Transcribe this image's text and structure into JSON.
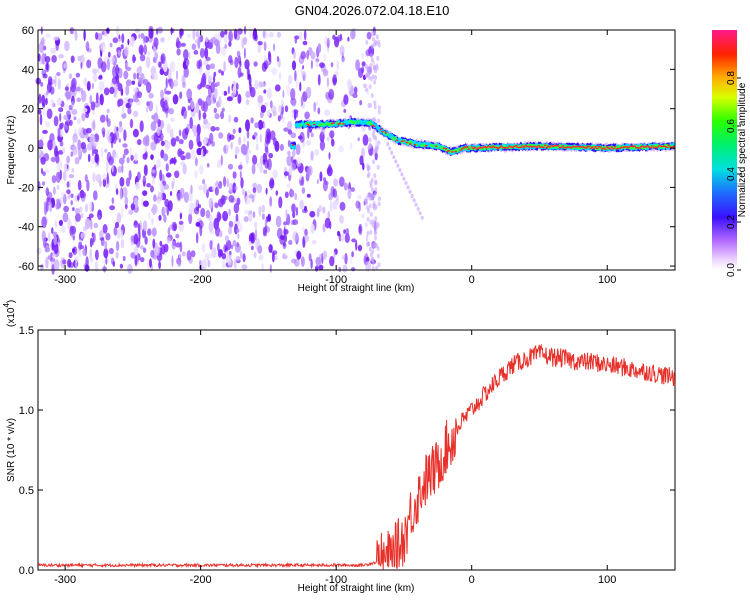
{
  "title": "GN04.2026.072.04.18.E10",
  "colors": {
    "series": "#e8302a",
    "axis": "#000000",
    "scatter": "#7a22ff"
  },
  "chart_data": [
    {
      "type": "heatmap",
      "xlabel": "Height of straight line (km)",
      "ylabel": "Frequency (Hz)",
      "xlim": [
        -320,
        150
      ],
      "ylim": [
        -62,
        60
      ],
      "xticks": [
        -300,
        -200,
        -100,
        0,
        100
      ],
      "xtick_labels": [
        "-300",
        "-200",
        "-100",
        "0",
        "100"
      ],
      "yticks": [
        60,
        40,
        20,
        0,
        -20,
        -40,
        -60
      ],
      "ytick_labels": [
        "60",
        "40",
        "20",
        "0",
        "-20",
        "-40",
        "-60"
      ],
      "noise_region_x": [
        -320,
        -70
      ],
      "ridge": [
        [
          -130,
          12
        ],
        [
          -110,
          12
        ],
        [
          -90,
          13
        ],
        [
          -75,
          13
        ],
        [
          -65,
          8
        ],
        [
          -55,
          4
        ],
        [
          -40,
          2
        ],
        [
          -25,
          1
        ],
        [
          -15,
          -2
        ],
        [
          -5,
          0
        ],
        [
          0,
          0
        ],
        [
          50,
          1
        ],
        [
          100,
          0
        ],
        [
          150,
          1
        ]
      ],
      "colorbar": {
        "label": "Normalized spectral amplitude",
        "range": [
          0,
          1
        ],
        "ticks": [
          0.0,
          0.2,
          0.4,
          0.6,
          0.8
        ],
        "tick_labels": [
          "0.0",
          "0.2",
          "0.4",
          "0.6",
          "0.8"
        ]
      }
    },
    {
      "type": "line",
      "xlabel": "Height of straight line (km)",
      "ylabel": "SNR (10 * v/v)",
      "scale_label": "(x10",
      "scale_exp": "4",
      "scale_close": ")",
      "xlim": [
        -320,
        150
      ],
      "ylim": [
        0,
        1.5
      ],
      "xticks": [
        -300,
        -200,
        -100,
        0,
        100
      ],
      "xtick_labels": [
        "-300",
        "-200",
        "-100",
        "0",
        "100"
      ],
      "yticks": [
        0.0,
        0.5,
        1.0,
        1.5
      ],
      "ytick_labels": [
        "0.0",
        "0.5",
        "1.0",
        "1.5"
      ],
      "series": [
        {
          "name": "SNR",
          "x": [
            -320,
            -250,
            -200,
            -150,
            -100,
            -80,
            -70,
            -60,
            -50,
            -45,
            -40,
            -35,
            -30,
            -25,
            -20,
            -15,
            -10,
            -5,
            0,
            10,
            20,
            30,
            40,
            50,
            60,
            70,
            80,
            90,
            100,
            110,
            120,
            130,
            140,
            150
          ],
          "y": [
            0.03,
            0.03,
            0.03,
            0.03,
            0.03,
            0.03,
            0.05,
            0.08,
            0.2,
            0.35,
            0.45,
            0.55,
            0.6,
            0.65,
            0.75,
            0.8,
            0.9,
            0.95,
            1.0,
            1.1,
            1.2,
            1.28,
            1.32,
            1.35,
            1.33,
            1.32,
            1.3,
            1.3,
            1.28,
            1.27,
            1.25,
            1.24,
            1.22,
            1.2
          ]
        }
      ]
    }
  ]
}
